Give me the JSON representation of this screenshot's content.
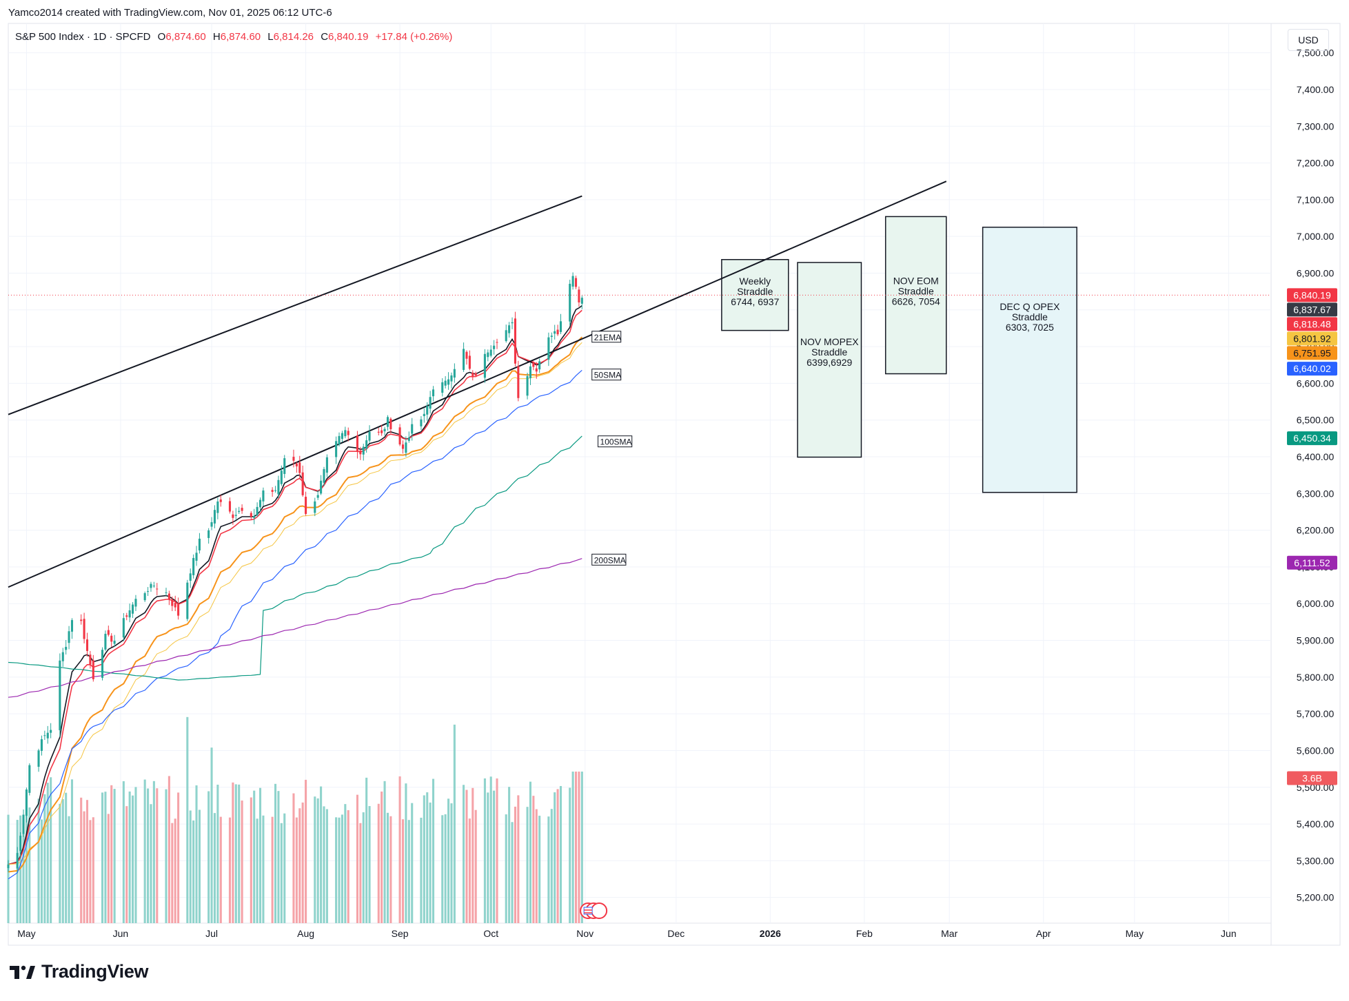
{
  "header": {
    "credit": "Yamco2014 created with TradingView.com, Nov 01, 2025 06:12 UTC-6",
    "symbol": "S&P 500 Index · 1D · SPCFD",
    "o_label": "O",
    "o_value": "6,874.60",
    "h_label": "H",
    "h_value": "6,874.60",
    "l_label": "L",
    "l_value": "6,814.26",
    "c_label": "C",
    "c_value": "6,840.19",
    "change": "+17.84 (+0.26%)",
    "currency": "USD"
  },
  "brand": {
    "name": "TradingView",
    "icon": "tradingview-logo-icon"
  },
  "colors": {
    "up": "#26a69a",
    "down": "#f23645",
    "vol_up": "#8fd3cc",
    "vol_down": "#f5a3a8",
    "ema8": "#131722",
    "ema10": "#f23645",
    "ema21": "#f7931a",
    "ema_thin": "#f5c542",
    "sma50": "#2962ff",
    "sma100": "#089981",
    "sma200": "#9c27b0",
    "box_green": "#e8f5ef",
    "box_blue": "#e6f5f8"
  },
  "chart_data": {
    "type": "candlestick",
    "title": "S&P 500 Index · 1D · SPCFD",
    "y_axis": {
      "min": 5130,
      "max": 7580,
      "ticks": [
        "7,500.00",
        "7,400.00",
        "7,300.00",
        "7,200.00",
        "7,100.00",
        "7,000.00",
        "6,900.00",
        "6,800.00",
        "6,700.00",
        "6,600.00",
        "6,500.00",
        "6,400.00",
        "6,300.00",
        "6,200.00",
        "6,100.00",
        "6,000.00",
        "5,900.00",
        "5,800.00",
        "5,700.00",
        "5,600.00",
        "5,500.00",
        "5,400.00",
        "5,300.00",
        "5,200.00"
      ]
    },
    "x_axis": {
      "start": "2025-04-25",
      "end": "2026-06-15",
      "ticks": [
        {
          "label": "May",
          "date": "2025-05-01",
          "bold": false
        },
        {
          "label": "Jun",
          "date": "2025-06-01",
          "bold": false
        },
        {
          "label": "Jul",
          "date": "2025-07-01",
          "bold": false
        },
        {
          "label": "Aug",
          "date": "2025-08-01",
          "bold": false
        },
        {
          "label": "Sep",
          "date": "2025-09-01",
          "bold": false
        },
        {
          "label": "Oct",
          "date": "2025-10-01",
          "bold": false
        },
        {
          "label": "Nov",
          "date": "2025-11-01",
          "bold": false
        },
        {
          "label": "Dec",
          "date": "2025-12-01",
          "bold": false
        },
        {
          "label": "2026",
          "date": "2026-01-01",
          "bold": true
        },
        {
          "label": "Feb",
          "date": "2026-02-01",
          "bold": false
        },
        {
          "label": "Mar",
          "date": "2026-03-01",
          "bold": false
        },
        {
          "label": "Apr",
          "date": "2026-04-01",
          "bold": false
        },
        {
          "label": "May",
          "date": "2026-05-01",
          "bold": false
        },
        {
          "label": "Jun",
          "date": "2026-06-01",
          "bold": false
        }
      ]
    },
    "close_anchors": [
      [
        "2025-04-25",
        5290
      ],
      [
        "2025-04-28",
        5320
      ],
      [
        "2025-04-30",
        5430
      ],
      [
        "2025-05-02",
        5560
      ],
      [
        "2025-05-07",
        5640
      ],
      [
        "2025-05-09",
        5660
      ],
      [
        "2025-05-12",
        5840
      ],
      [
        "2025-05-14",
        5890
      ],
      [
        "2025-05-16",
        5960
      ],
      [
        "2025-05-19",
        5950
      ],
      [
        "2025-05-21",
        5870
      ],
      [
        "2025-05-23",
        5800
      ],
      [
        "2025-05-27",
        5910
      ],
      [
        "2025-05-30",
        5900
      ],
      [
        "2025-06-03",
        5970
      ],
      [
        "2025-06-06",
        6010
      ],
      [
        "2025-06-10",
        6040
      ],
      [
        "2025-06-12",
        6050
      ],
      [
        "2025-06-16",
        6030
      ],
      [
        "2025-06-20",
        5970
      ],
      [
        "2025-06-24",
        6090
      ],
      [
        "2025-06-27",
        6170
      ],
      [
        "2025-06-30",
        6200
      ],
      [
        "2025-07-03",
        6280
      ],
      [
        "2025-07-08",
        6240
      ],
      [
        "2025-07-11",
        6260
      ],
      [
        "2025-07-15",
        6240
      ],
      [
        "2025-07-18",
        6300
      ],
      [
        "2025-07-22",
        6310
      ],
      [
        "2025-07-25",
        6390
      ],
      [
        "2025-07-28",
        6390
      ],
      [
        "2025-07-30",
        6360
      ],
      [
        "2025-08-01",
        6240
      ],
      [
        "2025-08-05",
        6300
      ],
      [
        "2025-08-08",
        6390
      ],
      [
        "2025-08-12",
        6450
      ],
      [
        "2025-08-14",
        6470
      ],
      [
        "2025-08-19",
        6410
      ],
      [
        "2025-08-22",
        6470
      ],
      [
        "2025-08-26",
        6460
      ],
      [
        "2025-08-28",
        6500
      ],
      [
        "2025-09-02",
        6420
      ],
      [
        "2025-09-05",
        6480
      ],
      [
        "2025-09-09",
        6510
      ],
      [
        "2025-09-12",
        6590
      ],
      [
        "2025-09-16",
        6600
      ],
      [
        "2025-09-18",
        6630
      ],
      [
        "2025-09-22",
        6690
      ],
      [
        "2025-09-25",
        6610
      ],
      [
        "2025-09-30",
        6690
      ],
      [
        "2025-10-03",
        6720
      ],
      [
        "2025-10-08",
        6760
      ],
      [
        "2025-10-10",
        6560
      ],
      [
        "2025-10-14",
        6650
      ],
      [
        "2025-10-16",
        6640
      ],
      [
        "2025-10-20",
        6730
      ],
      [
        "2025-10-23",
        6740
      ],
      [
        "2025-10-27",
        6880
      ],
      [
        "2025-10-28",
        6890
      ],
      [
        "2025-10-29",
        6870
      ],
      [
        "2025-10-30",
        6822
      ],
      [
        "2025-10-31",
        6840
      ]
    ],
    "overlays": [
      {
        "name": "21EMA",
        "period": 21,
        "type": "ema",
        "color": "#f7931a"
      },
      {
        "name": "50SMA",
        "period": 50,
        "type": "sma",
        "color": "#2962ff"
      },
      {
        "name": "100SMA",
        "period": 100,
        "type": "sma",
        "color": "#089981"
      },
      {
        "name": "200SMA",
        "period": 200,
        "type": "sma",
        "color": "#9c27b0"
      }
    ],
    "overlay_labels": [
      {
        "text": "21EMA",
        "date": "2025-11-01",
        "value": 6725
      },
      {
        "text": "50SMA",
        "date": "2025-11-01",
        "value": 6622
      },
      {
        "text": "100SMA",
        "date": "2025-11-03",
        "value": 6440
      },
      {
        "text": "200SMA",
        "date": "2025-11-01",
        "value": 6118
      }
    ],
    "trendlines": [
      {
        "name": "upper-channel-line",
        "x1": "2025-04-25",
        "y1": 6515,
        "x2": "2025-10-31",
        "y2": 7110
      },
      {
        "name": "lower-channel-line",
        "x1": "2025-04-25",
        "y1": 6045,
        "x2": "2026-02-28",
        "y2": 7150
      }
    ],
    "price_level_line": 6840.19,
    "straddle_boxes": [
      {
        "name": "weekly-straddle",
        "lines": [
          "Weekly",
          "Straddle",
          "6744, 6937"
        ],
        "start": "2025-12-16",
        "end": "2026-01-07",
        "low": 6744,
        "high": 6937,
        "fill": "#e8f5ef"
      },
      {
        "name": "nov-mopex-straddle",
        "lines": [
          "NOV MOPEX",
          "Straddle",
          "6399,6929"
        ],
        "start": "2026-01-10",
        "end": "2026-01-31",
        "low": 6399,
        "high": 6929,
        "fill": "#e8f5ef"
      },
      {
        "name": "nov-eom-straddle",
        "lines": [
          "NOV EOM",
          "Straddle",
          "6626, 7054"
        ],
        "start": "2026-02-08",
        "end": "2026-02-28",
        "low": 6626,
        "high": 7054,
        "fill": "#e8f5ef"
      },
      {
        "name": "dec-q-opex-straddle",
        "lines": [
          "DEC Q OPEX",
          "Straddle",
          "6303, 7025"
        ],
        "start": "2026-03-12",
        "end": "2026-04-12",
        "low": 6303,
        "high": 7025,
        "fill": "#e6f5f8"
      }
    ],
    "price_badges": [
      {
        "value": "6,840.19",
        "price": 6840.19,
        "bg": "#f23645",
        "fg": "#ffffff"
      },
      {
        "value": "6,837.67",
        "price": 6837.67,
        "bg": "#363a45",
        "fg": "#ffffff"
      },
      {
        "value": "6,818.48",
        "price": 6818.48,
        "bg": "#f23645",
        "fg": "#ffffff"
      },
      {
        "value": "6,801.92",
        "price": 6801.92,
        "bg": "#f5c542",
        "fg": "#131722"
      },
      {
        "value": "6,751.95",
        "price": 6751.95,
        "bg": "#f7931a",
        "fg": "#131722"
      },
      {
        "value": "6,640.02",
        "price": 6640.02,
        "bg": "#2962ff",
        "fg": "#ffffff"
      },
      {
        "value": "6,450.34",
        "price": 6450.34,
        "bg": "#089981",
        "fg": "#ffffff"
      },
      {
        "value": "6,111.52",
        "price": 6111.52,
        "bg": "#9c27b0",
        "fg": "#ffffff"
      },
      {
        "value": "3.6B",
        "price": 5525,
        "bg": "#f05a5f",
        "fg": "#ffffff"
      }
    ],
    "volume": {
      "last": "3.6B",
      "spike_dates": [
        "2025-06-23",
        "2025-07-01",
        "2025-09-19"
      ]
    }
  }
}
